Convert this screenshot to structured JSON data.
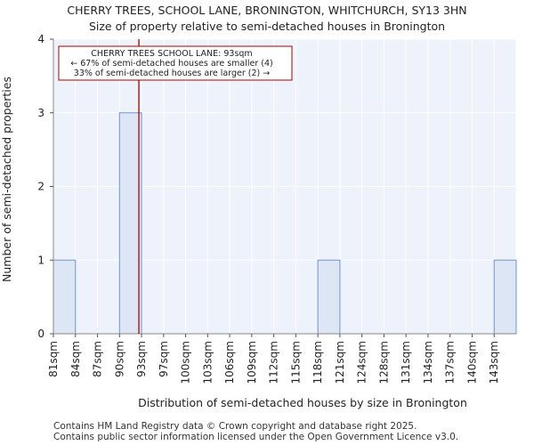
{
  "chart_data": {
    "type": "bar",
    "title": "CHERRY TREES, SCHOOL LANE, BRONINGTON, WHITCHURCH, SY13 3HN",
    "subtitle": "Size of property relative to semi-detached houses in Bronington",
    "xlabel": "Distribution of semi-detached houses by size in Bronington",
    "ylabel": "Number of semi-detached properties",
    "categories": [
      "81sqm",
      "84sqm",
      "87sqm",
      "90sqm",
      "93sqm",
      "97sqm",
      "100sqm",
      "103sqm",
      "106sqm",
      "109sqm",
      "112sqm",
      "115sqm",
      "118sqm",
      "121sqm",
      "124sqm",
      "128sqm",
      "131sqm",
      "134sqm",
      "137sqm",
      "140sqm",
      "143sqm"
    ],
    "values": [
      1,
      0,
      0,
      3,
      0,
      0,
      0,
      0,
      0,
      0,
      0,
      0,
      1,
      0,
      0,
      0,
      0,
      0,
      0,
      0,
      1
    ],
    "ylim": [
      0,
      4
    ],
    "yticks": [
      0,
      1,
      2,
      3,
      4
    ],
    "grid": true,
    "marker": {
      "value_sqm": 93,
      "color": "#aa0000"
    },
    "annotation": {
      "lines": [
        "CHERRY TREES SCHOOL LANE: 93sqm",
        "← 67% of semi-detached houses are smaller (4)",
        "33% of semi-detached houses are larger (2) →"
      ]
    },
    "colors": {
      "bar_fill": "#dce6f5",
      "bar_stroke": "#7393c9",
      "plot_bg": "#eef2fb",
      "grid": "#ffffff"
    }
  },
  "footer": {
    "line1": "Contains HM Land Registry data © Crown copyright and database right 2025.",
    "line2": "Contains public sector information licensed under the Open Government Licence v3.0."
  }
}
